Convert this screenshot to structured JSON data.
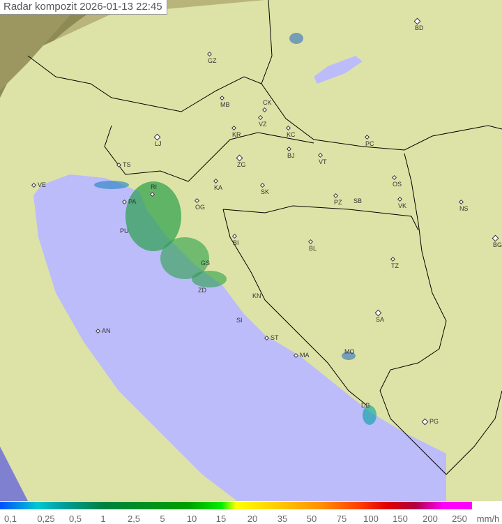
{
  "title": "Radar kompozit  2026-01-13   22:45",
  "colors": {
    "land": "#dde3a6",
    "sea": "#bcbcfa",
    "outside": "#8d8a55",
    "border": "#000000",
    "rain": "#2aa04a"
  },
  "cities": [
    "BD",
    "GZ",
    "MB",
    "CK",
    "VZ",
    "KR",
    "KC",
    "LJ",
    "PC",
    "BJ",
    "TS",
    "ZG",
    "VT",
    "KA",
    "SK",
    "OS",
    "VE",
    "RI",
    "PA",
    "OG",
    "PZ",
    "SB",
    "VK",
    "NS",
    "PU",
    "BI",
    "BL",
    "BG",
    "GS",
    "TZ",
    "ZD",
    "KN",
    "SA",
    "SI",
    "AN",
    "ST",
    "MA",
    "MO",
    "DB",
    "PG"
  ],
  "legend": {
    "labels": [
      "0,1",
      "0,25",
      "0,5",
      "1",
      "2,5",
      "5",
      "10",
      "15",
      "20",
      "35",
      "50",
      "75",
      "100",
      "150",
      "200",
      "250"
    ],
    "unit": "mm/h"
  }
}
